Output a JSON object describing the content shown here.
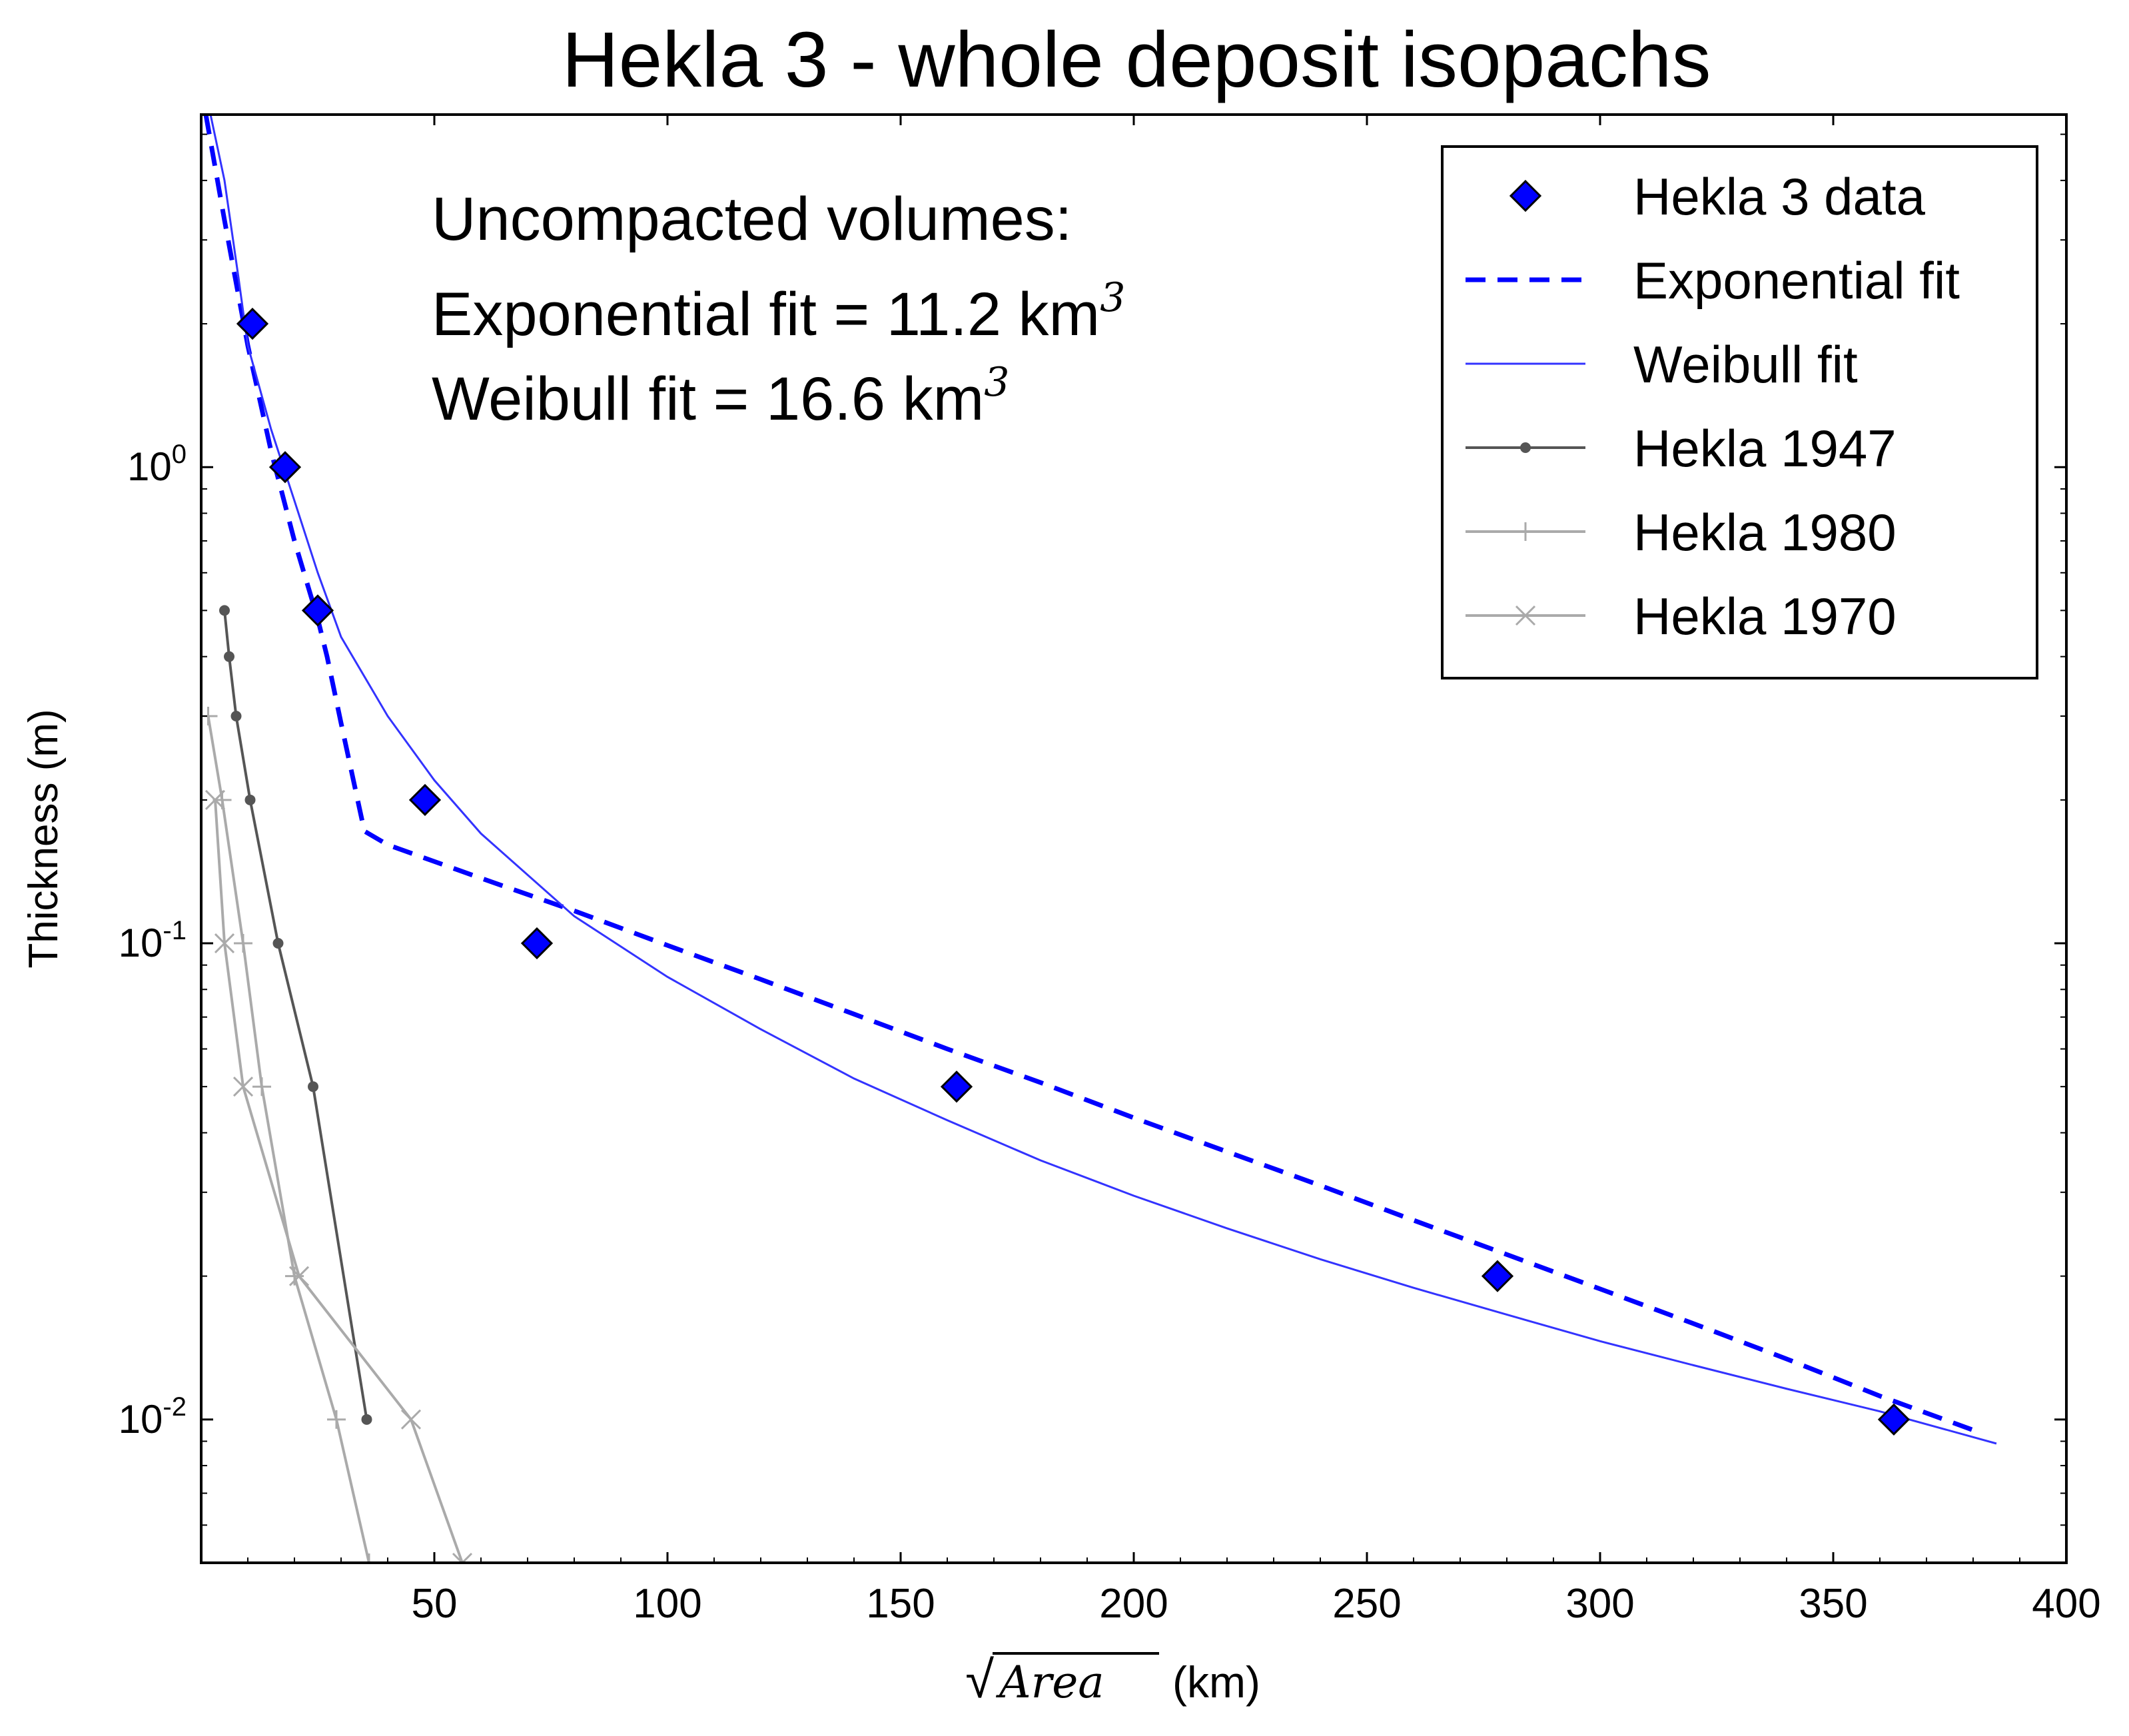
{
  "chart_data": {
    "type": "line",
    "title": "Hekla 3 - whole deposit isopachs",
    "xlabel": {
      "radical": "√",
      "var": "Area",
      "unit": "(km)"
    },
    "ylabel": "Thickness (m)",
    "xlim": [
      0,
      400
    ],
    "ylim": [
      0.005,
      5.5
    ],
    "yscale": "log",
    "x_ticks": [
      50,
      100,
      150,
      200,
      250,
      300,
      350,
      400
    ],
    "y_major_ticks": [
      {
        "value": 1,
        "base": "10",
        "exp": "0"
      },
      {
        "value": 0.1,
        "base": "10",
        "exp": "-1"
      },
      {
        "value": 0.01,
        "base": "10",
        "exp": "-2"
      }
    ],
    "grid": false,
    "legend_position": "top-right",
    "annotation": {
      "line1": "Uncompacted volumes:",
      "line2": "Exponential fit = 11.2 km",
      "line2_sup": "3",
      "line3": "Weibull fit = 16.6 km",
      "line3_sup": "3"
    },
    "series": [
      {
        "name": "Hekla 3 data",
        "style": "diamond",
        "color": "#0000ff",
        "x": [
          11,
          18,
          25,
          48,
          72,
          162,
          278,
          363
        ],
        "y": [
          2,
          1,
          0.5,
          0.2,
          0.1,
          0.05,
          0.02,
          0.01
        ]
      },
      {
        "name": "Exponential fit",
        "style": "dashed",
        "color": "#0000ff",
        "x": [
          1,
          5,
          10,
          15,
          20,
          25,
          27,
          30,
          35,
          40,
          60,
          80,
          100,
          120,
          140,
          160,
          180,
          200,
          220,
          240,
          260,
          280,
          300,
          320,
          340,
          360,
          380
        ],
        "y": [
          5.5,
          3.3,
          1.8,
          1.08,
          0.7,
          0.48,
          0.4,
          0.29,
          0.172,
          0.161,
          0.137,
          0.117,
          0.099,
          0.084,
          0.071,
          0.06,
          0.051,
          0.043,
          0.0365,
          0.031,
          0.0262,
          0.0222,
          0.0188,
          0.0159,
          0.0134,
          0.0112,
          0.0095
        ]
      },
      {
        "name": "Weibull fit",
        "style": "solid",
        "color": "#3333ff",
        "x": [
          2,
          5,
          8,
          10,
          15,
          20,
          25,
          30,
          40,
          50,
          60,
          80,
          100,
          120,
          140,
          160,
          180,
          200,
          220,
          240,
          260,
          280,
          300,
          320,
          340,
          360,
          385
        ],
        "y": [
          5.5,
          4.0,
          2.5,
          1.8,
          1.2,
          0.85,
          0.6,
          0.44,
          0.3,
          0.22,
          0.17,
          0.114,
          0.085,
          0.066,
          0.052,
          0.0425,
          0.035,
          0.0295,
          0.0252,
          0.0217,
          0.0189,
          0.0166,
          0.0146,
          0.013,
          0.0116,
          0.0104,
          0.0089
        ]
      },
      {
        "name": "Hekla 1947",
        "style": "dot-line",
        "color": "#555555",
        "x": [
          5,
          6,
          7.5,
          10.5,
          16.5,
          24,
          35.5
        ],
        "y": [
          0.5,
          0.4,
          0.3,
          0.2,
          0.1,
          0.05,
          0.01
        ]
      },
      {
        "name": "Hekla 1980",
        "style": "plus-line",
        "color": "#aaaaaa",
        "x": [
          1.5,
          4.5,
          9,
          13,
          20,
          29,
          36
        ],
        "y": [
          0.3,
          0.2,
          0.1,
          0.05,
          0.02,
          0.01,
          0.005
        ]
      },
      {
        "name": "Hekla 1970",
        "style": "x-line",
        "color": "#aaaaaa",
        "x": [
          3,
          5,
          9,
          21,
          45,
          56
        ],
        "y": [
          0.2,
          0.1,
          0.05,
          0.02,
          0.01,
          0.005
        ]
      }
    ]
  }
}
